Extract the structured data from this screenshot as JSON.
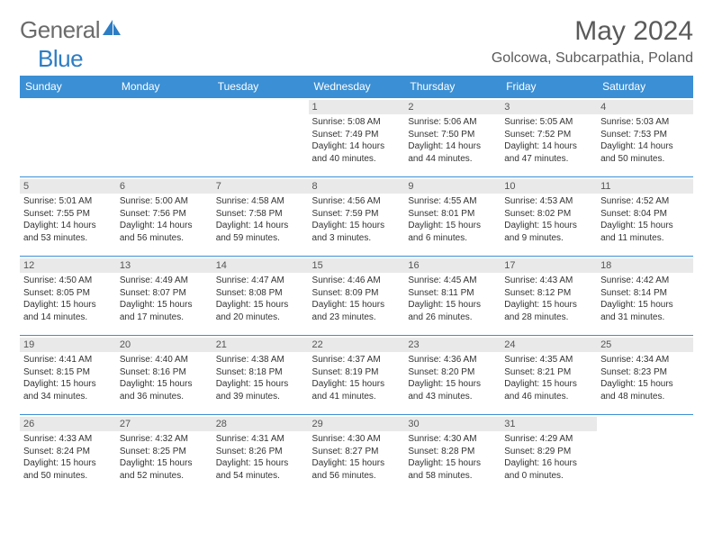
{
  "brand": {
    "name1": "General",
    "name2": "Blue"
  },
  "title": "May 2024",
  "location": "Golcowa, Subcarpathia, Poland",
  "colors": {
    "header_bg": "#3b8fd4",
    "header_text": "#ffffff",
    "daynum_bg": "#e9e9e9",
    "border": "#3b8fd4",
    "brand_gray": "#6b6b6b",
    "brand_blue": "#2d7dc4",
    "text": "#333333"
  },
  "typography": {
    "title_fontsize": 30,
    "location_fontsize": 16,
    "weekday_fontsize": 12,
    "daynum_fontsize": 11,
    "cell_fontsize": 10
  },
  "weekdays": [
    "Sunday",
    "Monday",
    "Tuesday",
    "Wednesday",
    "Thursday",
    "Friday",
    "Saturday"
  ],
  "weeks": [
    [
      null,
      null,
      null,
      {
        "n": "1",
        "sr": "5:08 AM",
        "ss": "7:49 PM",
        "dh": "14",
        "dm": "40"
      },
      {
        "n": "2",
        "sr": "5:06 AM",
        "ss": "7:50 PM",
        "dh": "14",
        "dm": "44"
      },
      {
        "n": "3",
        "sr": "5:05 AM",
        "ss": "7:52 PM",
        "dh": "14",
        "dm": "47"
      },
      {
        "n": "4",
        "sr": "5:03 AM",
        "ss": "7:53 PM",
        "dh": "14",
        "dm": "50"
      }
    ],
    [
      {
        "n": "5",
        "sr": "5:01 AM",
        "ss": "7:55 PM",
        "dh": "14",
        "dm": "53"
      },
      {
        "n": "6",
        "sr": "5:00 AM",
        "ss": "7:56 PM",
        "dh": "14",
        "dm": "56"
      },
      {
        "n": "7",
        "sr": "4:58 AM",
        "ss": "7:58 PM",
        "dh": "14",
        "dm": "59"
      },
      {
        "n": "8",
        "sr": "4:56 AM",
        "ss": "7:59 PM",
        "dh": "15",
        "dm": "3"
      },
      {
        "n": "9",
        "sr": "4:55 AM",
        "ss": "8:01 PM",
        "dh": "15",
        "dm": "6"
      },
      {
        "n": "10",
        "sr": "4:53 AM",
        "ss": "8:02 PM",
        "dh": "15",
        "dm": "9"
      },
      {
        "n": "11",
        "sr": "4:52 AM",
        "ss": "8:04 PM",
        "dh": "15",
        "dm": "11"
      }
    ],
    [
      {
        "n": "12",
        "sr": "4:50 AM",
        "ss": "8:05 PM",
        "dh": "15",
        "dm": "14"
      },
      {
        "n": "13",
        "sr": "4:49 AM",
        "ss": "8:07 PM",
        "dh": "15",
        "dm": "17"
      },
      {
        "n": "14",
        "sr": "4:47 AM",
        "ss": "8:08 PM",
        "dh": "15",
        "dm": "20"
      },
      {
        "n": "15",
        "sr": "4:46 AM",
        "ss": "8:09 PM",
        "dh": "15",
        "dm": "23"
      },
      {
        "n": "16",
        "sr": "4:45 AM",
        "ss": "8:11 PM",
        "dh": "15",
        "dm": "26"
      },
      {
        "n": "17",
        "sr": "4:43 AM",
        "ss": "8:12 PM",
        "dh": "15",
        "dm": "28"
      },
      {
        "n": "18",
        "sr": "4:42 AM",
        "ss": "8:14 PM",
        "dh": "15",
        "dm": "31"
      }
    ],
    [
      {
        "n": "19",
        "sr": "4:41 AM",
        "ss": "8:15 PM",
        "dh": "15",
        "dm": "34"
      },
      {
        "n": "20",
        "sr": "4:40 AM",
        "ss": "8:16 PM",
        "dh": "15",
        "dm": "36"
      },
      {
        "n": "21",
        "sr": "4:38 AM",
        "ss": "8:18 PM",
        "dh": "15",
        "dm": "39"
      },
      {
        "n": "22",
        "sr": "4:37 AM",
        "ss": "8:19 PM",
        "dh": "15",
        "dm": "41"
      },
      {
        "n": "23",
        "sr": "4:36 AM",
        "ss": "8:20 PM",
        "dh": "15",
        "dm": "43"
      },
      {
        "n": "24",
        "sr": "4:35 AM",
        "ss": "8:21 PM",
        "dh": "15",
        "dm": "46"
      },
      {
        "n": "25",
        "sr": "4:34 AM",
        "ss": "8:23 PM",
        "dh": "15",
        "dm": "48"
      }
    ],
    [
      {
        "n": "26",
        "sr": "4:33 AM",
        "ss": "8:24 PM",
        "dh": "15",
        "dm": "50"
      },
      {
        "n": "27",
        "sr": "4:32 AM",
        "ss": "8:25 PM",
        "dh": "15",
        "dm": "52"
      },
      {
        "n": "28",
        "sr": "4:31 AM",
        "ss": "8:26 PM",
        "dh": "15",
        "dm": "54"
      },
      {
        "n": "29",
        "sr": "4:30 AM",
        "ss": "8:27 PM",
        "dh": "15",
        "dm": "56"
      },
      {
        "n": "30",
        "sr": "4:30 AM",
        "ss": "8:28 PM",
        "dh": "15",
        "dm": "58"
      },
      {
        "n": "31",
        "sr": "4:29 AM",
        "ss": "8:29 PM",
        "dh": "16",
        "dm": "0"
      },
      null
    ]
  ]
}
